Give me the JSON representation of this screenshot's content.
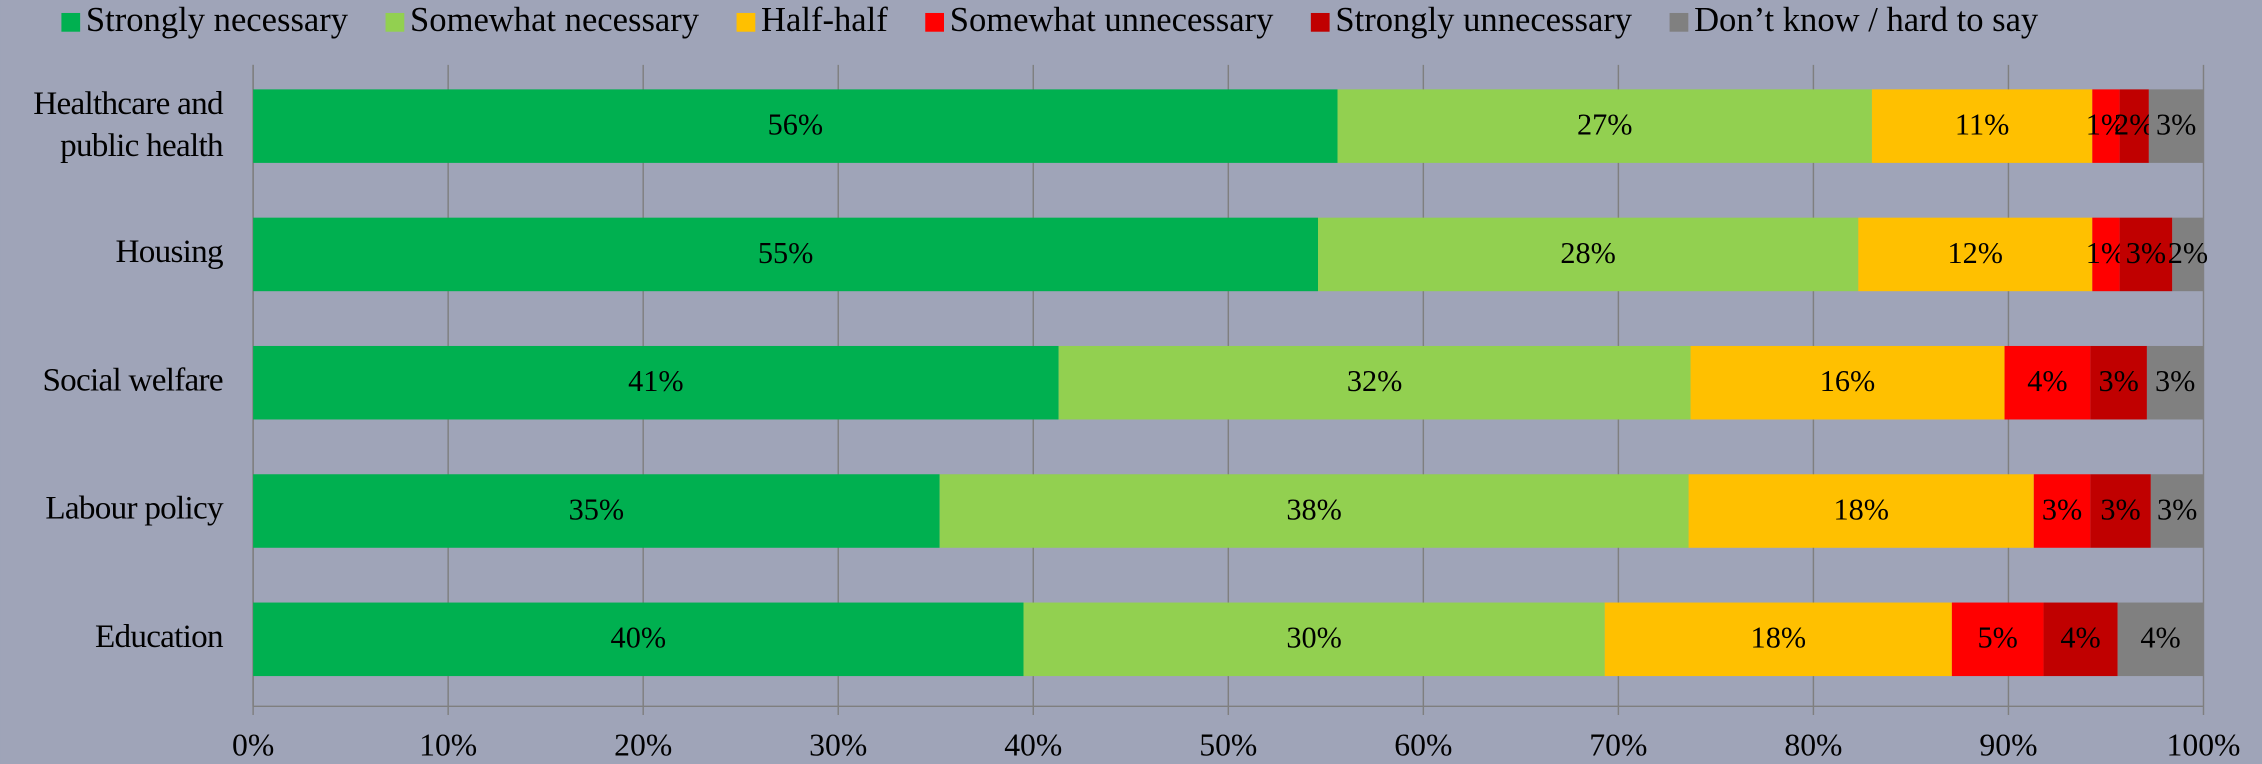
{
  "chart_data": {
    "type": "stacked-bar-horizontal",
    "categories": [
      "Healthcare and public health",
      "Housing",
      "Social welfare",
      "Labour policy",
      "Education"
    ],
    "series": [
      {
        "name": "Strongly necessary",
        "color": "#00b050",
        "values": [
          55.6,
          54.6,
          41.3,
          35.2,
          39.5
        ],
        "value_labels": [
          "56%",
          "55%",
          "41%",
          "35%",
          "40%"
        ]
      },
      {
        "name": "Somewhat necessary",
        "color": "#92d050",
        "values": [
          27.4,
          27.7,
          32.4,
          38.4,
          29.8
        ],
        "value_labels": [
          "27%",
          "28%",
          "32%",
          "38%",
          "30%"
        ]
      },
      {
        "name": "Half-half",
        "color": "#ffc000",
        "values": [
          11.3,
          12.0,
          16.1,
          17.7,
          17.8
        ],
        "value_labels": [
          "11%",
          "12%",
          "16%",
          "18%",
          "18%"
        ]
      },
      {
        "name": "Somewhat unnecessary",
        "color": "#ff0000",
        "values": [
          1.4,
          1.4,
          4.4,
          2.9,
          4.7
        ],
        "value_labels": [
          "1%",
          "1%",
          "4%",
          "3%",
          "5%"
        ]
      },
      {
        "name": "Strongly unnecessary",
        "color": "#c00000",
        "values": [
          1.5,
          2.7,
          2.9,
          3.1,
          3.8
        ],
        "value_labels": [
          "2%",
          "3%",
          "3%",
          "3%",
          "4%"
        ]
      },
      {
        "name": "Don’t know / hard to say",
        "color": "#808080",
        "values": [
          2.8,
          1.6,
          2.9,
          2.7,
          4.4
        ],
        "value_labels": [
          "3%",
          "2%",
          "3%",
          "3%",
          "4%"
        ]
      }
    ],
    "xlim": [
      0,
      100
    ],
    "xticks": [
      {
        "value": 0,
        "label": "0%"
      },
      {
        "value": 10,
        "label": "10%"
      },
      {
        "value": 20,
        "label": "20%"
      },
      {
        "value": 30,
        "label": "30%"
      },
      {
        "value": 40,
        "label": "40%"
      },
      {
        "value": 50,
        "label": "50%"
      },
      {
        "value": 60,
        "label": "60%"
      },
      {
        "value": 70,
        "label": "70%"
      },
      {
        "value": 80,
        "label": "80%"
      },
      {
        "value": 90,
        "label": "90%"
      },
      {
        "value": 100,
        "label": "100%"
      }
    ],
    "grid": true,
    "legend": "top"
  }
}
